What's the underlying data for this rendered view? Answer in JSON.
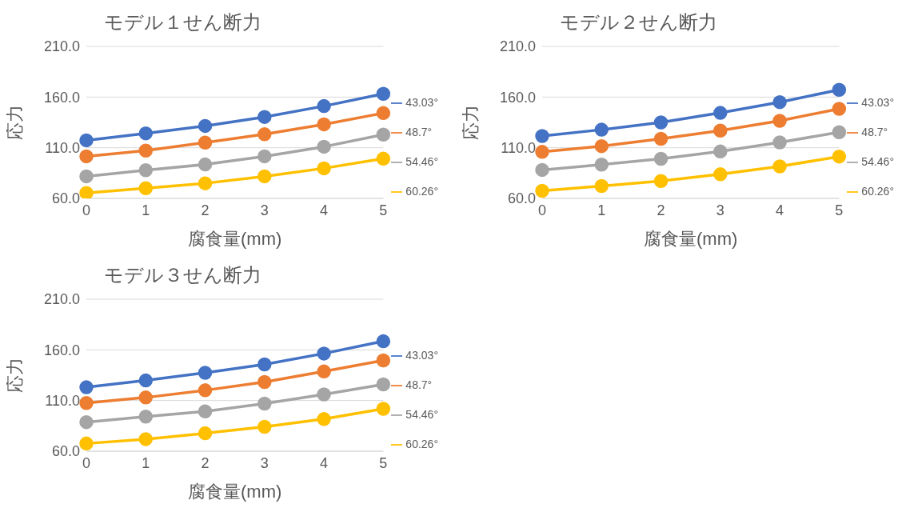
{
  "chart_data": [
    {
      "type": "line",
      "title": "モデル１せん断力",
      "xlabel": "腐食量(mm)",
      "ylabel": "応力",
      "categories": [
        "0",
        "1",
        "2",
        "3",
        "4",
        "5"
      ],
      "ylim": [
        60,
        210
      ],
      "yticks": [
        {
          "value": 60,
          "label": "60.0"
        },
        {
          "value": 110,
          "label": "110.0"
        },
        {
          "value": 160,
          "label": "160.0"
        },
        {
          "value": 210,
          "label": "210.0"
        }
      ],
      "grid": "y",
      "legend": "right",
      "marker": "circle",
      "series": [
        {
          "name": "43.03°",
          "color": "#4472c4",
          "values": [
            117.3,
            124.2,
            131.5,
            140.4,
            151.1,
            163.2
          ]
        },
        {
          "name": "48.7°",
          "color": "#ed7d31",
          "values": [
            101.5,
            107.2,
            115.1,
            123.3,
            133.1,
            144.2
          ]
        },
        {
          "name": "54.46°",
          "color": "#a5a5a5",
          "values": [
            81.8,
            87.8,
            93.5,
            101.5,
            111.0,
            123.0
          ]
        },
        {
          "name": "60.26°",
          "color": "#ffc000",
          "values": [
            65.4,
            70.1,
            74.9,
            81.8,
            89.7,
            99.2
          ]
        }
      ]
    },
    {
      "type": "line",
      "title": "モデル２せん断力",
      "xlabel": "腐食量(mm)",
      "ylabel": "応力",
      "categories": [
        "0",
        "1",
        "2",
        "3",
        "4",
        "5"
      ],
      "ylim": [
        60,
        210
      ],
      "yticks": [
        {
          "value": 60,
          "label": "60.0"
        },
        {
          "value": 110,
          "label": "110.0"
        },
        {
          "value": 160,
          "label": "160.0"
        },
        {
          "value": 210,
          "label": "210.0"
        }
      ],
      "grid": "y",
      "legend": "right",
      "marker": "circle",
      "series": [
        {
          "name": "43.03°",
          "color": "#4472c4",
          "values": [
            121.6,
            127.8,
            135.0,
            144.4,
            155.0,
            167.2
          ]
        },
        {
          "name": "48.7°",
          "color": "#ed7d31",
          "values": [
            105.9,
            111.6,
            118.8,
            126.9,
            136.6,
            148.4
          ]
        },
        {
          "name": "54.46°",
          "color": "#a5a5a5",
          "values": [
            88.1,
            93.4,
            99.1,
            106.3,
            115.3,
            125.3
          ]
        },
        {
          "name": "60.26°",
          "color": "#ffc000",
          "values": [
            67.5,
            72.2,
            77.2,
            83.8,
            91.6,
            101.3
          ]
        }
      ]
    },
    {
      "type": "line",
      "title": "モデル３せん断力",
      "xlabel": "腐食量(mm)",
      "ylabel": "応力",
      "categories": [
        "0",
        "1",
        "2",
        "3",
        "4",
        "5"
      ],
      "ylim": [
        60,
        210
      ],
      "yticks": [
        {
          "value": 60,
          "label": "60.0"
        },
        {
          "value": 110,
          "label": "110.0"
        },
        {
          "value": 160,
          "label": "160.0"
        },
        {
          "value": 210,
          "label": "210.0"
        }
      ],
      "grid": "y",
      "legend": "right",
      "marker": "circle",
      "series": [
        {
          "name": "43.03°",
          "color": "#4472c4",
          "values": [
            123.1,
            129.8,
            137.4,
            145.7,
            156.4,
            168.5
          ]
        },
        {
          "name": "48.7°",
          "color": "#ed7d31",
          "values": [
            107.6,
            113.0,
            120.1,
            128.3,
            138.7,
            149.6
          ]
        },
        {
          "name": "54.46°",
          "color": "#a5a5a5",
          "values": [
            88.7,
            94.1,
            99.3,
            107.0,
            116.1,
            125.9
          ]
        },
        {
          "name": "60.26°",
          "color": "#ffc000",
          "values": [
            67.6,
            71.9,
            77.7,
            84.1,
            91.7,
            101.8
          ]
        }
      ]
    }
  ]
}
